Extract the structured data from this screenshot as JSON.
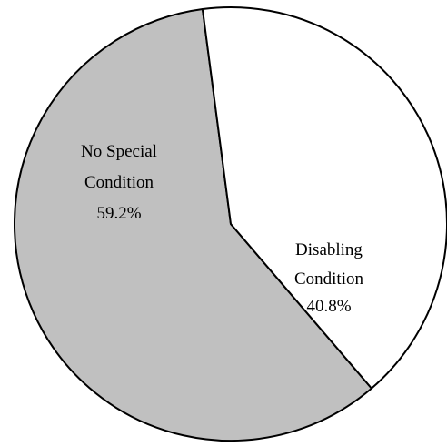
{
  "chart_data": {
    "type": "pie",
    "slices": [
      {
        "label_line1": "No Special",
        "label_line2": "Condition",
        "percent_label": "59.2%",
        "value": 59.2,
        "color": "#c0c0c0"
      },
      {
        "label_line1": "Disabling",
        "label_line2": "Condition",
        "percent_label": "40.8%",
        "value": 40.8,
        "color": "#ffffff"
      }
    ]
  }
}
